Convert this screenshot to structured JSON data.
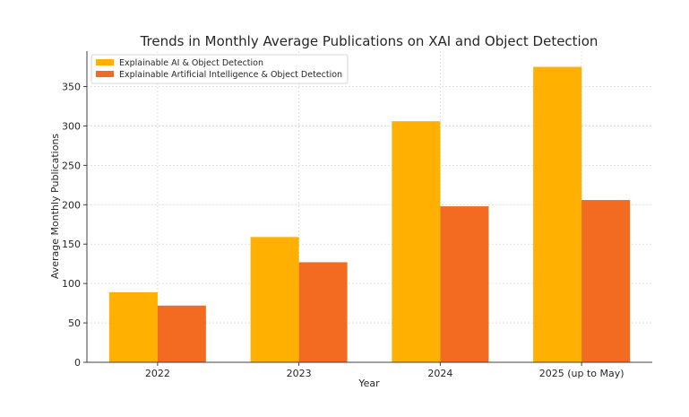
{
  "chart_data": {
    "type": "bar",
    "title": "Trends in Monthly Average Publications on XAI and Object Detection",
    "xlabel": "Year",
    "ylabel": "Average Monthly Publications",
    "categories": [
      "2022",
      "2023",
      "2024",
      "2025 (up to May)"
    ],
    "series": [
      {
        "name": "Explainable AI & Object Detection",
        "values": [
          89,
          159,
          306,
          375
        ],
        "color": "#FFB000"
      },
      {
        "name": "Explainable Artificial Intelligence & Object Detection",
        "values": [
          72,
          127,
          198,
          206
        ],
        "color": "#F26B21"
      }
    ],
    "ylim": [
      0,
      395
    ],
    "yticks": [
      0,
      50,
      100,
      150,
      200,
      250,
      300,
      350
    ],
    "grid": true,
    "legend_position": "top-left"
  }
}
